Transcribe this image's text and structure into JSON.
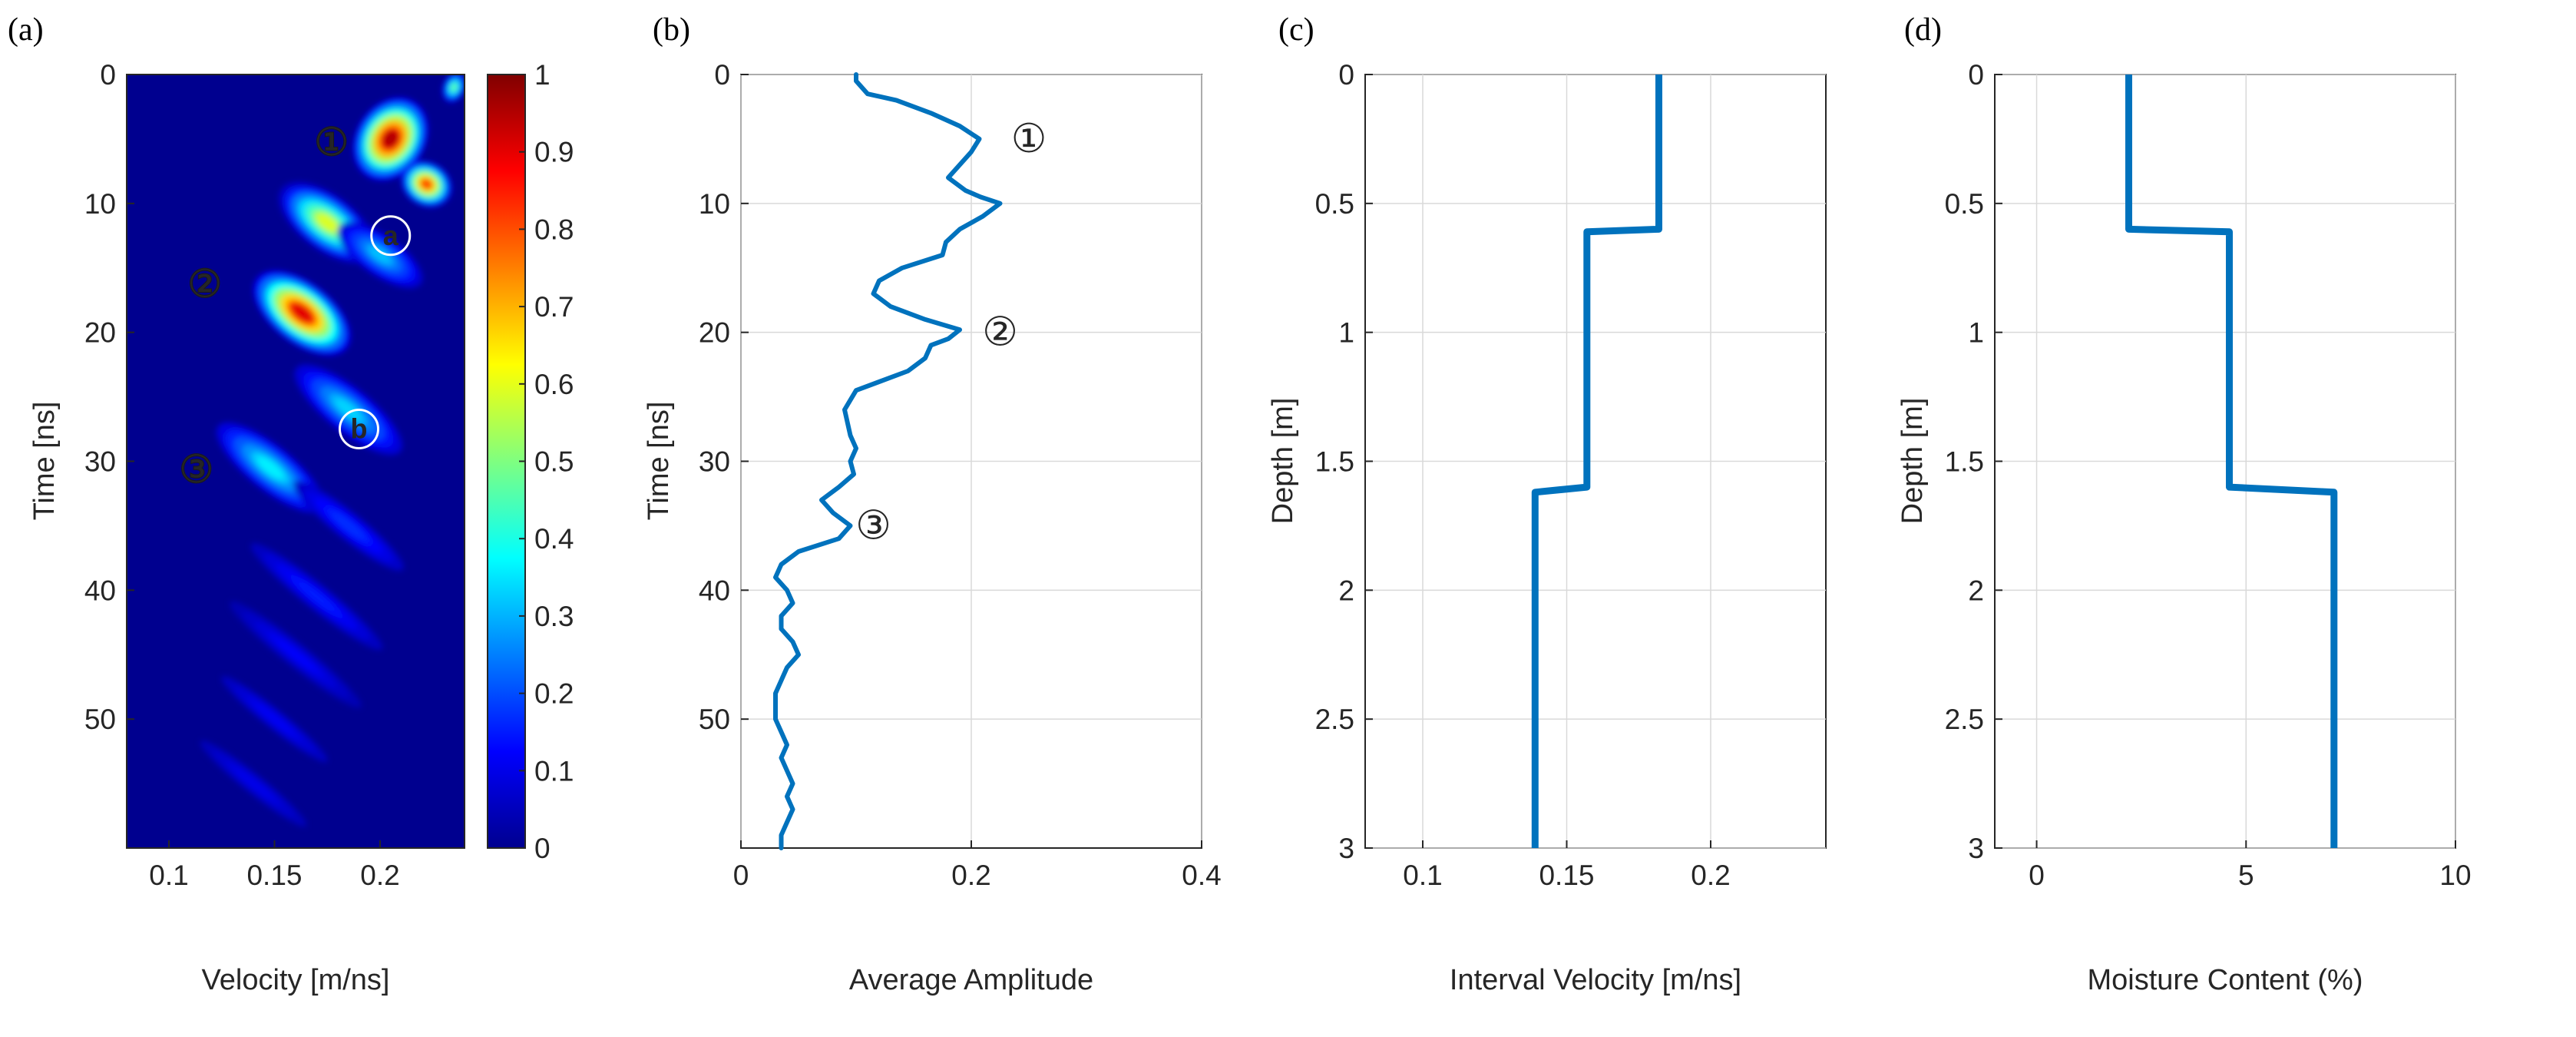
{
  "chart_data": [
    {
      "panel_label": "(a)",
      "type": "heatmap",
      "xlabel": "Velocity [m/ns]",
      "ylabel": "Time [ns]",
      "xlim": [
        0.08,
        0.24
      ],
      "ylim": [
        0,
        60
      ],
      "xticks": [
        0.1,
        0.15,
        0.2
      ],
      "xticklabels": [
        "0.1",
        "0.15",
        "0.2"
      ],
      "yticks": [
        0,
        10,
        20,
        30,
        40,
        50
      ],
      "yticklabels": [
        "0",
        "10",
        "20",
        "30",
        "40",
        "50"
      ],
      "colorbar": {
        "range": [
          0,
          1
        ],
        "ticks": [
          0,
          0.1,
          0.2,
          0.3,
          0.4,
          0.5,
          0.6,
          0.7,
          0.8,
          0.9,
          1
        ],
        "ticklabels": [
          "0",
          "0.1",
          "0.2",
          "0.3",
          "0.4",
          "0.5",
          "0.6",
          "0.7",
          "0.8",
          "0.9",
          "1"
        ]
      },
      "blobs": [
        {
          "v": 0.205,
          "t": 5,
          "amp": 1.0,
          "rv": 0.018,
          "rt": 3.8,
          "tilt": 0.65
        },
        {
          "v": 0.222,
          "t": 8.5,
          "amp": 0.85,
          "rv": 0.014,
          "rt": 1.9,
          "tilt": 0.6
        },
        {
          "v": 0.235,
          "t": 1.0,
          "amp": 0.5,
          "rv": 0.006,
          "rt": 1.4,
          "tilt": 0.4
        },
        {
          "v": 0.175,
          "t": 11.5,
          "amp": 0.62,
          "rv": 0.03,
          "rt": 2.4,
          "tilt": 0.75
        },
        {
          "v": 0.2,
          "t": 14,
          "amp": 0.33,
          "rv": 0.03,
          "rt": 2.0,
          "tilt": 0.7
        },
        {
          "v": 0.163,
          "t": 18.5,
          "amp": 0.95,
          "rv": 0.03,
          "rt": 2.6,
          "tilt": 0.78
        },
        {
          "v": 0.185,
          "t": 26,
          "amp": 0.35,
          "rv": 0.04,
          "rt": 2.2,
          "tilt": 0.8
        },
        {
          "v": 0.148,
          "t": 30.5,
          "amp": 0.38,
          "rv": 0.04,
          "rt": 2.2,
          "tilt": 0.8
        },
        {
          "v": 0.185,
          "t": 35,
          "amp": 0.18,
          "rv": 0.05,
          "rt": 1.6,
          "tilt": 0.8
        },
        {
          "v": 0.17,
          "t": 40.5,
          "amp": 0.16,
          "rv": 0.06,
          "rt": 1.5,
          "tilt": 0.8
        },
        {
          "v": 0.16,
          "t": 45,
          "amp": 0.13,
          "rv": 0.06,
          "rt": 1.4,
          "tilt": 0.8
        },
        {
          "v": 0.15,
          "t": 50,
          "amp": 0.12,
          "rv": 0.06,
          "rt": 1.4,
          "tilt": 0.8
        },
        {
          "v": 0.14,
          "t": 55,
          "amp": 0.11,
          "rv": 0.06,
          "rt": 1.4,
          "tilt": 0.8
        }
      ],
      "annotations": [
        {
          "text": "①",
          "x": 0.177,
          "y": 5.3,
          "style": "outline-dark"
        },
        {
          "text": "a",
          "x": 0.205,
          "y": 12.5,
          "style": "circle-light"
        },
        {
          "text": "②",
          "x": 0.117,
          "y": 16.3,
          "style": "outline-dark"
        },
        {
          "text": "b",
          "x": 0.19,
          "y": 27.5,
          "style": "circle-light"
        },
        {
          "text": "③",
          "x": 0.113,
          "y": 30.7,
          "style": "outline-dark"
        }
      ]
    },
    {
      "panel_label": "(b)",
      "type": "line",
      "xlabel": "Average Amplitude",
      "ylabel": "Time [ns]",
      "xlim": [
        0,
        0.4
      ],
      "ylim": [
        0,
        60
      ],
      "xticks": [
        0,
        0.2,
        0.4
      ],
      "xticklabels": [
        "0",
        "0.2",
        "0.4"
      ],
      "yticks": [
        0,
        10,
        20,
        30,
        40,
        50
      ],
      "yticklabels": [
        "0",
        "10",
        "20",
        "30",
        "40",
        "50"
      ],
      "series": [
        {
          "name": "average amplitude",
          "points": [
            [
              0.1,
              0
            ],
            [
              0.1,
              0.5
            ],
            [
              0.11,
              1.5
            ],
            [
              0.135,
              2
            ],
            [
              0.165,
              3
            ],
            [
              0.19,
              4
            ],
            [
              0.207,
              5
            ],
            [
              0.2,
              6
            ],
            [
              0.19,
              7
            ],
            [
              0.18,
              8
            ],
            [
              0.195,
              9
            ],
            [
              0.208,
              9.5
            ],
            [
              0.225,
              10
            ],
            [
              0.21,
              11
            ],
            [
              0.19,
              12
            ],
            [
              0.178,
              13
            ],
            [
              0.175,
              14
            ],
            [
              0.14,
              15
            ],
            [
              0.12,
              16
            ],
            [
              0.115,
              17
            ],
            [
              0.13,
              18
            ],
            [
              0.16,
              19
            ],
            [
              0.19,
              19.8
            ],
            [
              0.18,
              20.5
            ],
            [
              0.165,
              21
            ],
            [
              0.16,
              22
            ],
            [
              0.145,
              23
            ],
            [
              0.1,
              24.5
            ],
            [
              0.09,
              26
            ],
            [
              0.095,
              28
            ],
            [
              0.1,
              29
            ],
            [
              0.095,
              30
            ],
            [
              0.098,
              31
            ],
            [
              0.085,
              32
            ],
            [
              0.07,
              33
            ],
            [
              0.08,
              34
            ],
            [
              0.095,
              35
            ],
            [
              0.085,
              36
            ],
            [
              0.05,
              37
            ],
            [
              0.035,
              38
            ],
            [
              0.03,
              39
            ],
            [
              0.04,
              40
            ],
            [
              0.045,
              41
            ],
            [
              0.035,
              42
            ],
            [
              0.035,
              43
            ],
            [
              0.045,
              44
            ],
            [
              0.05,
              45
            ],
            [
              0.04,
              46
            ],
            [
              0.035,
              47
            ],
            [
              0.03,
              48
            ],
            [
              0.03,
              49
            ],
            [
              0.03,
              50
            ],
            [
              0.035,
              51
            ],
            [
              0.04,
              52
            ],
            [
              0.035,
              53
            ],
            [
              0.04,
              54
            ],
            [
              0.045,
              55
            ],
            [
              0.04,
              56
            ],
            [
              0.045,
              57
            ],
            [
              0.04,
              58
            ],
            [
              0.035,
              59
            ],
            [
              0.035,
              60
            ]
          ]
        }
      ],
      "annotations": [
        {
          "text": "①",
          "x": 0.25,
          "y": 5
        },
        {
          "text": "②",
          "x": 0.225,
          "y": 20
        },
        {
          "text": "③",
          "x": 0.115,
          "y": 35
        }
      ]
    },
    {
      "panel_label": "(c)",
      "type": "line",
      "xlabel": "Interval Velocity [m/ns]",
      "ylabel": "Depth [m]",
      "xlim": [
        0.08,
        0.24
      ],
      "ylim": [
        0,
        3
      ],
      "xticks": [
        0.1,
        0.15,
        0.2
      ],
      "xticklabels": [
        "0.1",
        "0.15",
        "0.2"
      ],
      "yticks": [
        0,
        0.5,
        1,
        1.5,
        2,
        2.5,
        3
      ],
      "yticklabels": [
        "0",
        "0.5",
        "1",
        "1.5",
        "2",
        "2.5",
        "3"
      ],
      "series": [
        {
          "name": "interval velocity",
          "points": [
            [
              0.182,
              0
            ],
            [
              0.182,
              0.6
            ],
            [
              0.157,
              0.61
            ],
            [
              0.157,
              1.6
            ],
            [
              0.139,
              1.62
            ],
            [
              0.139,
              3
            ]
          ]
        }
      ]
    },
    {
      "panel_label": "(d)",
      "type": "line",
      "xlabel": "Moisture Content (%)",
      "ylabel": "Depth [m]",
      "xlim": [
        -1,
        10
      ],
      "ylim": [
        0,
        3
      ],
      "xticks": [
        0,
        5,
        10
      ],
      "xticklabels": [
        "0",
        "5",
        "10"
      ],
      "yticks": [
        0,
        0.5,
        1,
        1.5,
        2,
        2.5,
        3
      ],
      "yticklabels": [
        "0",
        "0.5",
        "1",
        "1.5",
        "2",
        "2.5",
        "3"
      ],
      "series": [
        {
          "name": "moisture content",
          "points": [
            [
              2.2,
              0
            ],
            [
              2.2,
              0.6
            ],
            [
              4.6,
              0.61
            ],
            [
              4.6,
              1.6
            ],
            [
              7.1,
              1.62
            ],
            [
              7.1,
              3
            ]
          ]
        }
      ]
    }
  ],
  "colors": {
    "line": "#0072bd",
    "grid": "#d9d9d9",
    "axis": "#262626"
  }
}
